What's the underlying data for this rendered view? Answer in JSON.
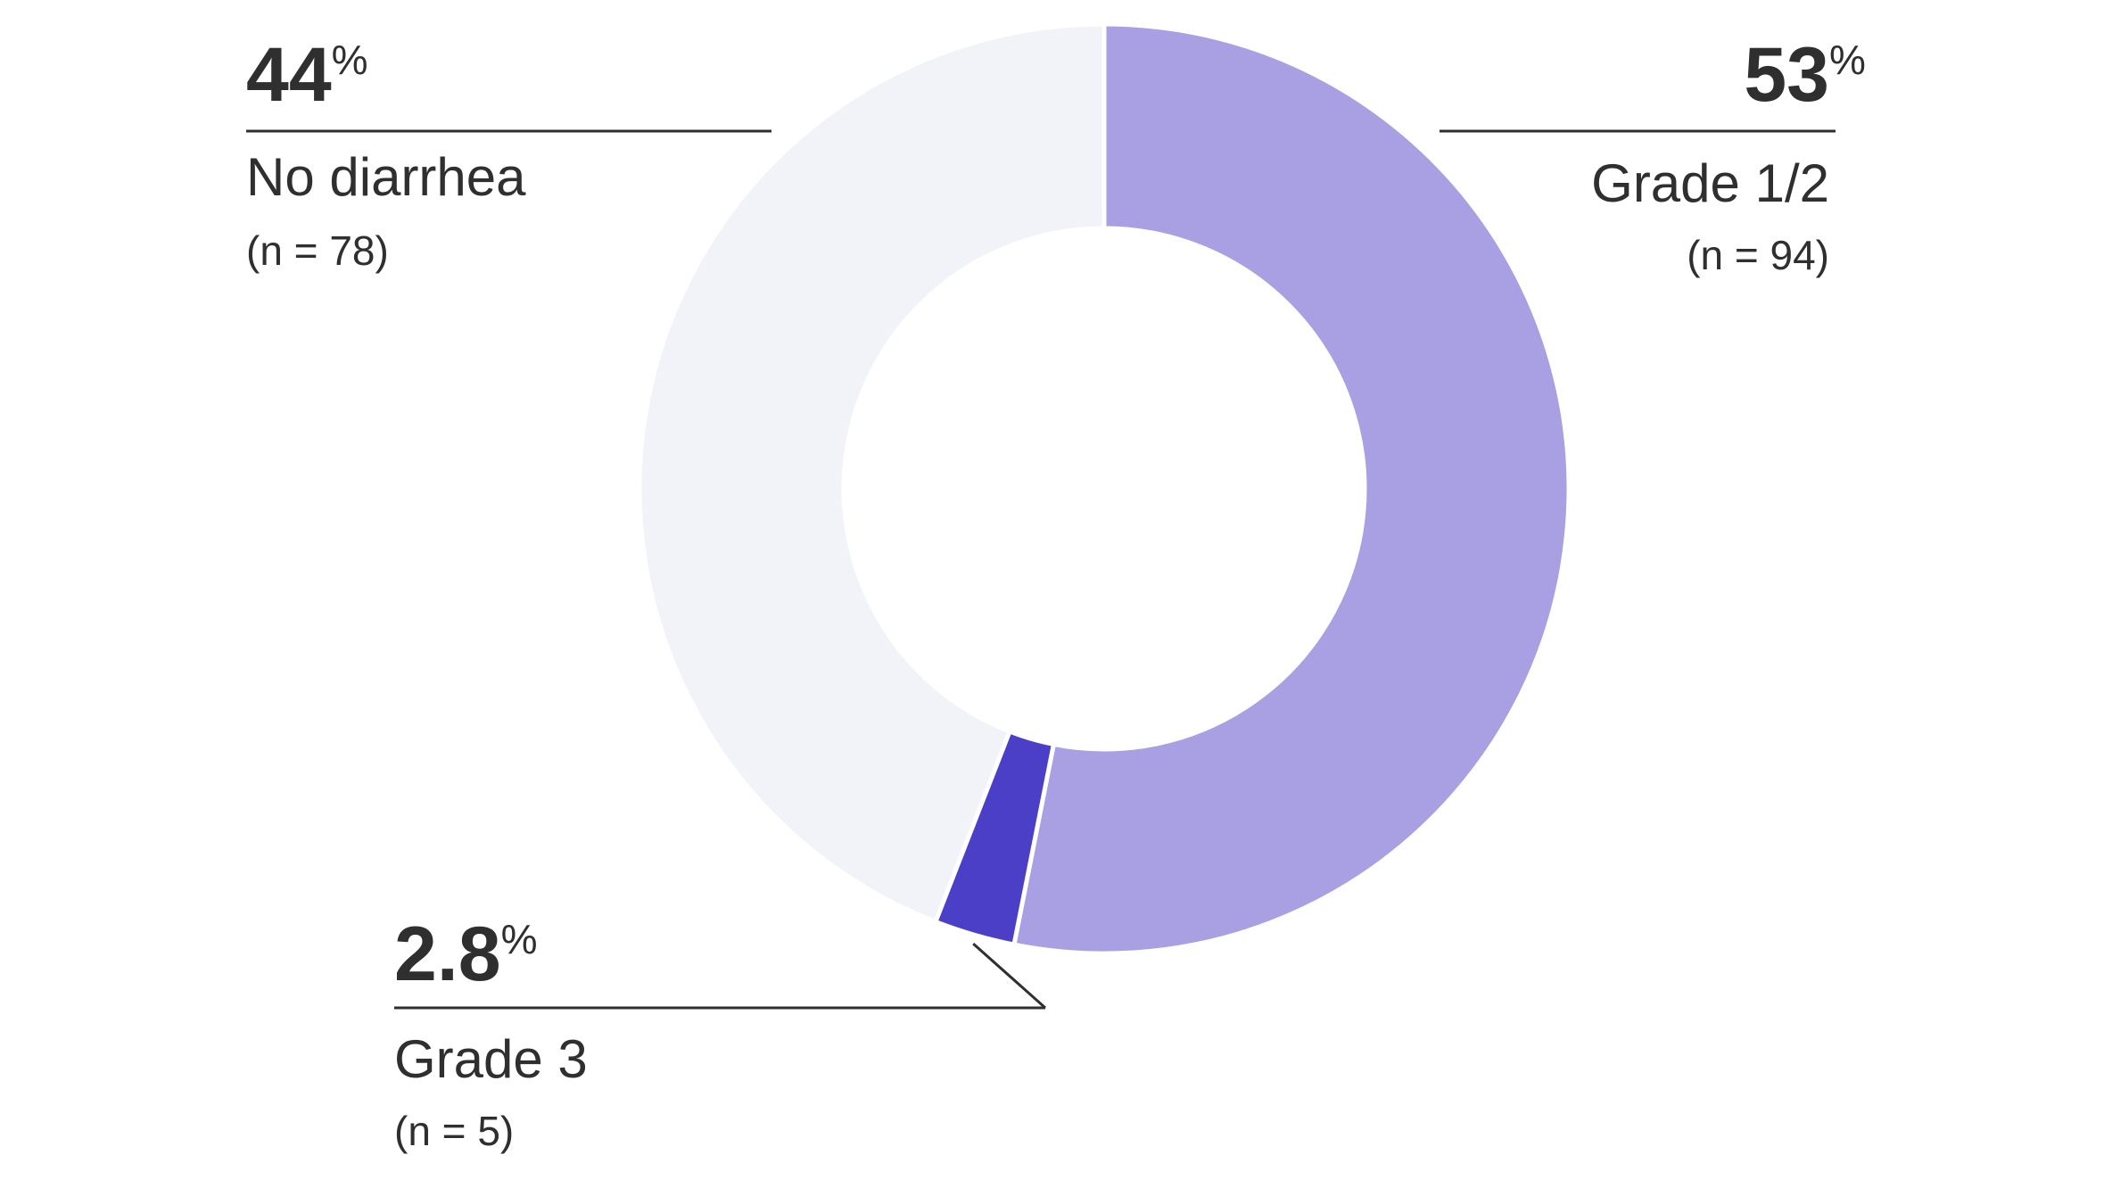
{
  "chart_data": {
    "type": "donut",
    "categories": [
      "Grade 1/2",
      "Grade 3",
      "No diarrhea"
    ],
    "values": [
      53,
      2.8,
      44
    ],
    "unit": "%",
    "count_labels": [
      "(n = 94)",
      "(n = 5)",
      "(n = 78)"
    ],
    "colors": [
      "#a8a0e2",
      "#4b3fc8",
      "#f2f3f8"
    ]
  }
}
